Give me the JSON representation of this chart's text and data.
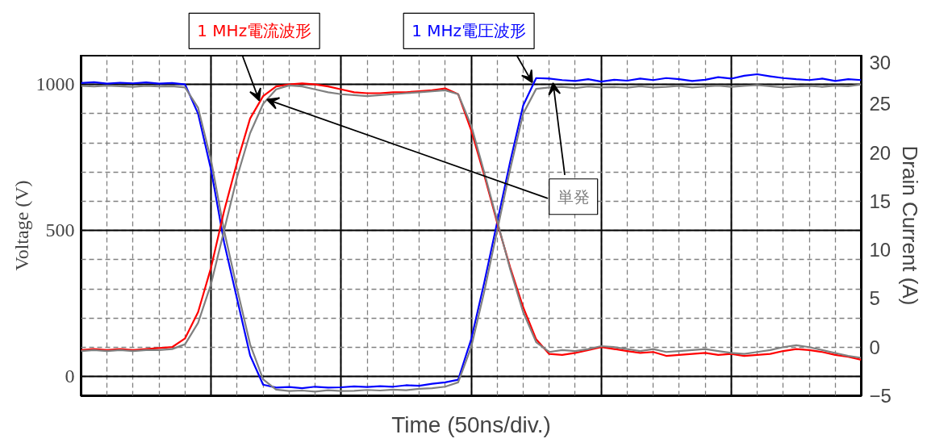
{
  "chart_data": {
    "type": "line",
    "xlabel": "Time (50ns/div.)",
    "ylabel": "Voltage (V)",
    "y2label": "Drain Current (A)",
    "categories": [
      null,
      null,
      null,
      null,
      null,
      null,
      null,
      null,
      null,
      null,
      null,
      null,
      null,
      null,
      null,
      null,
      null,
      null,
      null,
      null,
      null,
      null,
      null,
      null,
      null,
      null,
      null,
      null,
      null,
      null,
      null,
      null,
      null,
      null,
      null,
      null,
      null,
      null,
      null,
      null,
      null,
      null,
      null,
      null,
      null,
      null,
      null,
      null,
      null,
      null,
      null,
      null,
      null,
      null,
      null,
      null,
      null,
      null,
      null,
      null,
      null
    ],
    "ylim": [
      -66,
      1100
    ],
    "yticks": [
      0,
      500,
      1000
    ],
    "y2lim": [
      -5,
      30
    ],
    "y2ticks": [
      -5,
      0,
      5,
      10,
      15,
      20,
      25,
      30
    ],
    "grid": true,
    "marker": "none",
    "line_style": "solid",
    "series": [
      {
        "name": "1 MHz電圧波形",
        "color": "#0000ff",
        "values": [
          1005,
          1008,
          1003,
          1006,
          1004,
          1007,
          1003,
          1005,
          1000,
          900,
          707,
          459,
          265,
          72,
          -28,
          -38,
          -36,
          -40,
          -35,
          -38,
          -37,
          -34,
          -36,
          -33,
          -35,
          -30,
          -32,
          -25,
          -20,
          -11,
          127,
          320,
          528,
          735,
          928,
          1022,
          1020,
          1015,
          1012,
          1018,
          1010,
          1016,
          1013,
          1020,
          1015,
          1022,
          1018,
          1012,
          1016,
          1025,
          1020,
          1030,
          1035,
          1028,
          1022,
          1018,
          1015,
          1020,
          1012,
          1018,
          1015
        ]
      },
      {
        "name": "単発",
        "color": "#808080",
        "values": [
          995,
          993,
          996,
          994,
          992,
          995,
          993,
          994,
          990,
          920,
          740,
          500,
          300,
          110,
          -10,
          -45,
          -50,
          -48,
          -52,
          -47,
          -50,
          -49,
          -46,
          -48,
          -45,
          -47,
          -42,
          -40,
          -35,
          -20,
          100,
          290,
          500,
          710,
          900,
          985,
          990,
          992,
          988,
          993,
          990,
          991,
          989,
          994,
          990,
          992,
          995,
          990,
          993,
          996,
          992,
          995,
          998,
          994,
          990,
          993,
          995,
          992,
          996,
          994,
          1000
        ]
      },
      {
        "name": "1 MHz電流波形",
        "color": "#ff0000",
        "axis": "y2",
        "values": [
          -0.3,
          -0.2,
          -0.3,
          -0.2,
          -0.3,
          -0.2,
          -0.1,
          0,
          0.9,
          3.6,
          8.2,
          14,
          19,
          23.5,
          25.8,
          26.8,
          27,
          27.1,
          27,
          26.8,
          26.5,
          26.2,
          26.1,
          26.1,
          26.2,
          26.2,
          26.3,
          26.4,
          26.6,
          26,
          22.3,
          17.7,
          12.8,
          8.2,
          4.1,
          0.8,
          -0.7,
          -0.8,
          -0.6,
          -0.3,
          0,
          -0.2,
          -0.4,
          -0.6,
          -0.5,
          -0.9,
          -0.8,
          -0.7,
          -0.6,
          -0.8,
          -0.7,
          -0.9,
          -0.8,
          -0.7,
          -0.4,
          -0.2,
          -0.3,
          -0.5,
          -0.8,
          -1,
          -1.3
        ]
      },
      {
        "color": "#808080",
        "axis": "y2",
        "values": [
          -0.4,
          -0.3,
          -0.4,
          -0.3,
          -0.4,
          -0.3,
          -0.3,
          -0.2,
          0.3,
          2.5,
          6.5,
          12,
          17.5,
          22,
          25,
          26.5,
          26.9,
          26.8,
          26.5,
          26.2,
          26,
          25.9,
          25.8,
          25.9,
          26,
          26.1,
          26.2,
          26.3,
          26.4,
          26,
          22.8,
          18,
          13,
          8,
          3.6,
          0.5,
          -0.5,
          -0.3,
          -0.4,
          -0.2,
          0.1,
          0,
          -0.2,
          -0.4,
          -0.2,
          -0.5,
          -0.4,
          -0.3,
          -0.2,
          -0.4,
          -0.6,
          -0.7,
          -0.5,
          -0.3,
          0,
          0.2,
          0,
          -0.3,
          -0.6,
          -0.9,
          -1.1
        ]
      }
    ]
  }
}
